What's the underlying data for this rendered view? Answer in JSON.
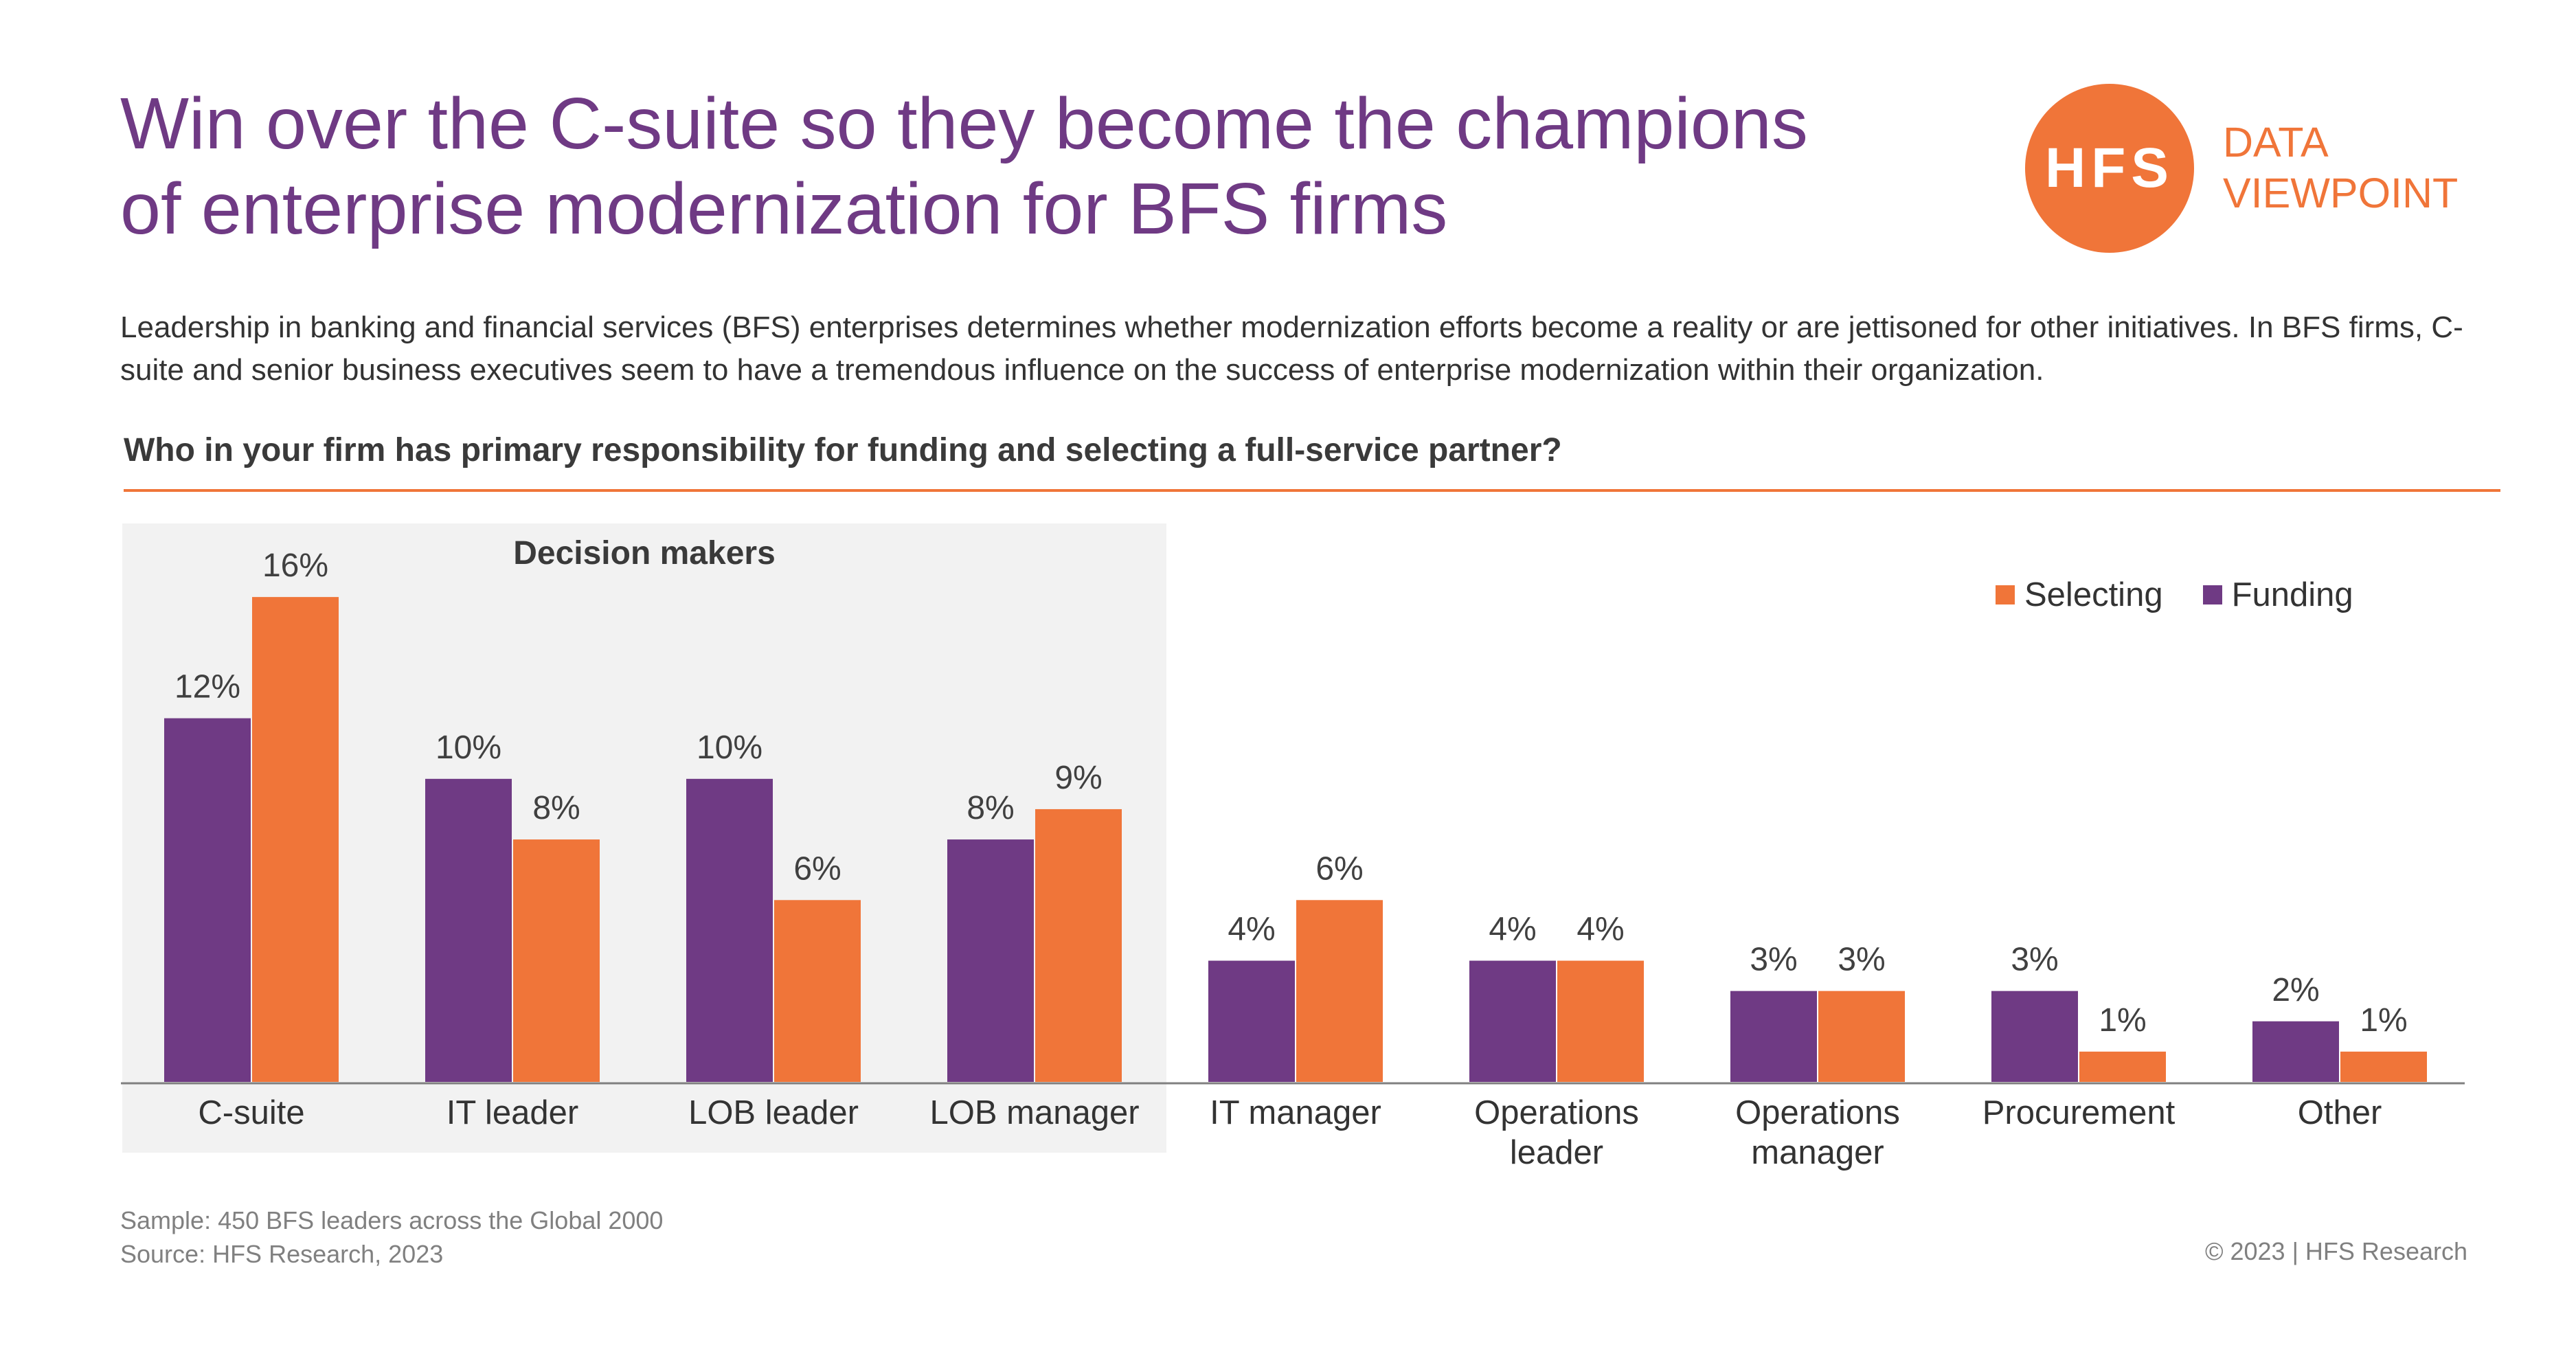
{
  "header": {
    "title_line1": "Win over the C-suite so they become the champions",
    "title_line2": "of enterprise modernization for BFS firms",
    "logo_text": "HFS",
    "badge_line1": "DATA",
    "badge_line2": "VIEWPOINT"
  },
  "intro": "Leadership in banking and financial services (BFS) enterprises determines whether modernization efforts become a reality or are jettisoned for other initiatives. In BFS firms, C-suite and senior business executives seem to have a tremendous influence on the success of enterprise modernization within their organization.",
  "question": "Who in your firm has primary responsibility for funding and selecting a full-service partner?",
  "highlight_label": "Decision makers",
  "legend": {
    "selecting": "Selecting",
    "funding": "Funding"
  },
  "colors": {
    "funding": "#6f3a84",
    "selecting": "#f07539",
    "title": "#6f3a84",
    "accent": "#f07539"
  },
  "chart_data": {
    "type": "bar",
    "categories": [
      [
        "C-suite"
      ],
      [
        "IT leader"
      ],
      [
        "LOB leader"
      ],
      [
        "LOB manager"
      ],
      [
        "IT manager"
      ],
      [
        "Operations",
        "leader"
      ],
      [
        "Operations",
        "manager"
      ],
      [
        "Procurement"
      ],
      [
        "Other"
      ]
    ],
    "series": [
      {
        "name": "Funding",
        "values": [
          12,
          10,
          10,
          8,
          4,
          4,
          3,
          3,
          2
        ],
        "labels": [
          "12%",
          "10%",
          "10%",
          "8%",
          "4%",
          "4%",
          "3%",
          "3%",
          "2%"
        ]
      },
      {
        "name": "Selecting",
        "values": [
          16,
          8,
          6,
          9,
          6,
          4,
          3,
          1,
          1
        ],
        "labels": [
          "16%",
          "8%",
          "6%",
          "9%",
          "6%",
          "4%",
          "3%",
          "1%",
          "1%"
        ]
      }
    ],
    "ylim": [
      0,
      17
    ],
    "grid": false,
    "legend_position": "top-right",
    "highlighted_categories": [
      "C-suite",
      "IT leader",
      "LOB leader",
      "LOB manager"
    ]
  },
  "footer": {
    "sample": "Sample: 450 BFS leaders across the Global 2000",
    "source": "Source: HFS Research, 2023",
    "copyright": "© 2023 | HFS Research"
  }
}
